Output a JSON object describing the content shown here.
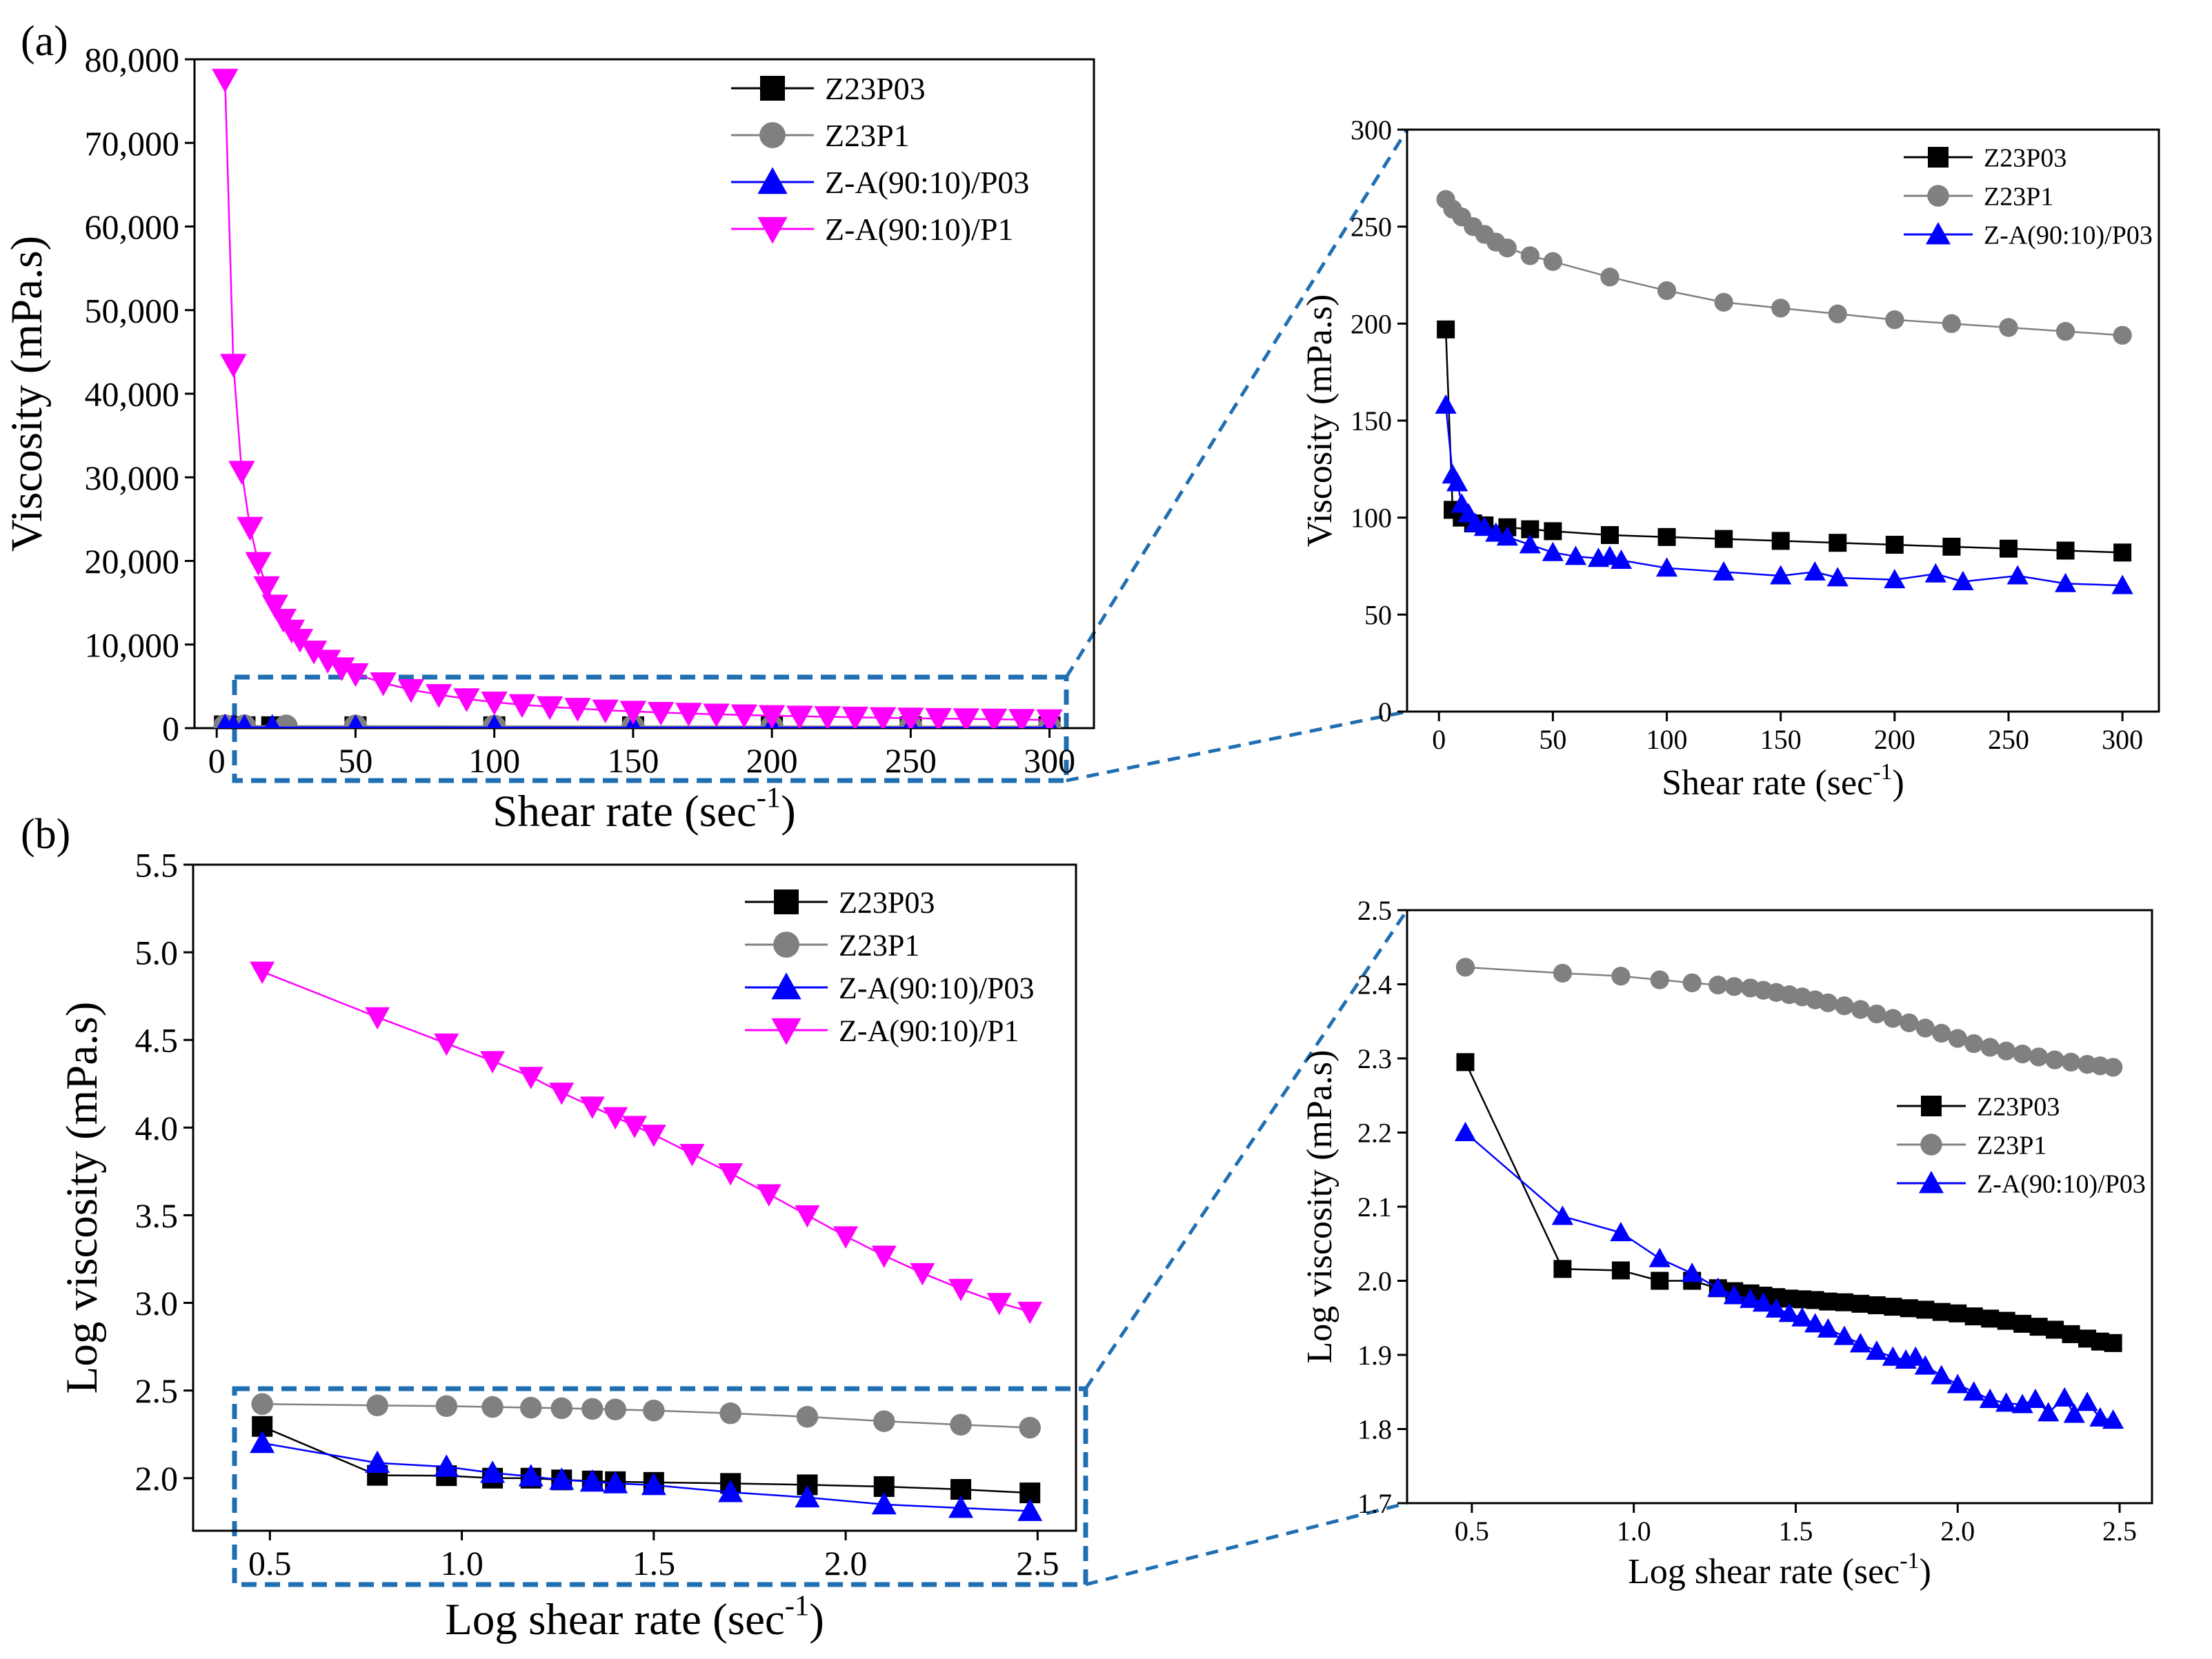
{
  "figure": {
    "panel_a_label": "(a)",
    "panel_b_label": "(b)"
  },
  "colors": {
    "Z23P03": "#000000",
    "Z23P1": "#808080",
    "Z-A(90:10)/P03": "#0000ff",
    "Z-A(90:10)/P1": "#ff00ff",
    "zoom": "#1f6fb2"
  },
  "chart_data": [
    {
      "id": "a-main",
      "type": "line",
      "title": "",
      "xlabel": "Shear rate (sec",
      "xlabel_sup": "-1",
      "xlabel_close": ")",
      "ylabel": "Viscosity (mPa.s)",
      "xlim": [
        -8,
        316
      ],
      "ylim": [
        0,
        80000
      ],
      "xticks": [
        0,
        50,
        100,
        150,
        200,
        250,
        300
      ],
      "xtick_labels": [
        "0",
        "50",
        "100",
        "150",
        "200",
        "250",
        "300"
      ],
      "yticks": [
        0,
        10000,
        20000,
        30000,
        40000,
        50000,
        60000,
        70000,
        80000
      ],
      "ytick_labels": [
        "0",
        "10,000",
        "20,000",
        "30,000",
        "40,000",
        "50,000",
        "60,000",
        "70,000",
        "80,000"
      ],
      "legend": [
        "Z23P03",
        "Z23P1",
        "Z-A(90:10)/P03",
        "Z-A(90:10)/P1"
      ],
      "legend_position": "top-right",
      "series": [
        {
          "name": "Z23P03",
          "marker": "square",
          "x": [
            3,
            6,
            10,
            20,
            50,
            100,
            150,
            200,
            250,
            300
          ],
          "y": [
            197,
            104,
            100,
            97,
            92,
            90,
            88,
            86,
            84,
            82
          ]
        },
        {
          "name": "Z23P1",
          "marker": "circle",
          "x": [
            3,
            10,
            25,
            50,
            100,
            150,
            200,
            250,
            300
          ],
          "y": [
            264,
            252,
            240,
            232,
            217,
            208,
            202,
            198,
            194
          ]
        },
        {
          "name": "Z-A(90:10)/P03",
          "marker": "triangle-up",
          "x": [
            3,
            6,
            10,
            20,
            50,
            100,
            150,
            200,
            250,
            300
          ],
          "y": [
            158,
            122,
            107,
            95,
            82,
            74,
            70,
            68,
            67,
            65
          ]
        },
        {
          "name": "Z-A(90:10)/P1",
          "marker": "triangle-down",
          "x": [
            3,
            6,
            9,
            12,
            15,
            18,
            21,
            24,
            27,
            30,
            35,
            40,
            45,
            50,
            60,
            70,
            80,
            90,
            100,
            110,
            120,
            130,
            140,
            150,
            160,
            170,
            180,
            190,
            200,
            210,
            220,
            230,
            240,
            250,
            260,
            270,
            280,
            290,
            300
          ],
          "y": [
            77600,
            43500,
            30700,
            24000,
            19800,
            16900,
            14700,
            13000,
            11700,
            10600,
            9200,
            8100,
            7200,
            6500,
            5400,
            4600,
            4000,
            3500,
            3100,
            2800,
            2550,
            2350,
            2150,
            2000,
            1870,
            1760,
            1660,
            1570,
            1490,
            1420,
            1360,
            1300,
            1240,
            1190,
            1140,
            1100,
            1060,
            1020,
            980
          ]
        }
      ]
    },
    {
      "id": "a-zoom",
      "type": "line",
      "title": "",
      "xlabel": "Shear rate (sec",
      "xlabel_sup": "-1",
      "xlabel_close": ")",
      "ylabel": "Viscosity (mPa.s)",
      "xlim": [
        -14,
        316
      ],
      "ylim": [
        0,
        300
      ],
      "xticks": [
        0,
        50,
        100,
        150,
        200,
        250,
        300
      ],
      "xtick_labels": [
        "0",
        "50",
        "100",
        "150",
        "200",
        "250",
        "300"
      ],
      "yticks": [
        0,
        50,
        100,
        150,
        200,
        250,
        300
      ],
      "ytick_labels": [
        "0",
        "50",
        "100",
        "150",
        "200",
        "250",
        "300"
      ],
      "legend": [
        "Z23P03",
        "Z23P1",
        "Z-A(90:10)/P03"
      ],
      "legend_position": "top-right",
      "series": [
        {
          "name": "Z23P03",
          "marker": "square",
          "x": [
            3,
            6,
            10,
            15,
            20,
            30,
            40,
            50,
            75,
            100,
            125,
            150,
            175,
            200,
            225,
            250,
            275,
            300
          ],
          "y": [
            197,
            104,
            100,
            97,
            96,
            95,
            94,
            93,
            91,
            90,
            89,
            88,
            87,
            86,
            85,
            84,
            83,
            82
          ]
        },
        {
          "name": "Z23P1",
          "marker": "circle",
          "x": [
            3,
            6,
            10,
            15,
            20,
            25,
            30,
            40,
            50,
            75,
            100,
            125,
            150,
            175,
            200,
            225,
            250,
            275,
            300
          ],
          "y": [
            264,
            259,
            255,
            250,
            246,
            242,
            239,
            235,
            232,
            224,
            217,
            211,
            208,
            205,
            202,
            200,
            198,
            196,
            194
          ]
        },
        {
          "name": "Z-A(90:10)/P03",
          "marker": "triangle-up",
          "x": [
            3,
            6,
            8,
            10,
            13,
            16,
            20,
            25,
            30,
            40,
            50,
            60,
            70,
            75,
            80,
            100,
            125,
            150,
            165,
            175,
            200,
            218,
            230,
            254,
            275,
            300
          ],
          "y": [
            158,
            122,
            118,
            107,
            102,
            97,
            95,
            92,
            90,
            86,
            82,
            80,
            79,
            80,
            78,
            74,
            72,
            70,
            72,
            69,
            68,
            71,
            67,
            70,
            66,
            65
          ]
        }
      ]
    },
    {
      "id": "b-main",
      "type": "line",
      "title": "",
      "xlabel": "Log shear rate (sec",
      "xlabel_sup": "-1",
      "xlabel_close": ")",
      "ylabel": "Log viscosity (mPa.s)",
      "xlim": [
        0.3,
        2.6
      ],
      "ylim": [
        1.7,
        5.5
      ],
      "xticks": [
        0.5,
        1.0,
        1.5,
        2.0,
        2.5
      ],
      "xtick_labels": [
        "0.5",
        "1.0",
        "1.5",
        "2.0",
        "2.5"
      ],
      "yticks": [
        2.0,
        2.5,
        3.0,
        3.5,
        4.0,
        4.5,
        5.0,
        5.5
      ],
      "ytick_labels": [
        "2.0",
        "2.5",
        "3.0",
        "3.5",
        "4.0",
        "4.5",
        "5.0",
        "5.5"
      ],
      "legend": [
        "Z23P03",
        "Z23P1",
        "Z-A(90:10)/P03",
        "Z-A(90:10)/P1"
      ],
      "legend_position": "top-right",
      "series": [
        {
          "name": "Z23P03",
          "marker": "square",
          "x": [
            0.48,
            0.78,
            0.96,
            1.08,
            1.18,
            1.26,
            1.34,
            1.4,
            1.5,
            1.7,
            1.9,
            2.1,
            2.3,
            2.48
          ],
          "y": [
            2.295,
            2.016,
            2.014,
            2.0,
            2.0,
            1.99,
            1.984,
            1.98,
            1.976,
            1.97,
            1.962,
            1.952,
            1.936,
            1.916
          ]
        },
        {
          "name": "Z23P1",
          "marker": "circle",
          "x": [
            0.48,
            0.78,
            0.96,
            1.08,
            1.18,
            1.26,
            1.34,
            1.4,
            1.5,
            1.7,
            1.9,
            2.1,
            2.3,
            2.48
          ],
          "y": [
            2.423,
            2.415,
            2.411,
            2.406,
            2.402,
            2.399,
            2.395,
            2.392,
            2.386,
            2.37,
            2.35,
            2.325,
            2.305,
            2.288
          ]
        },
        {
          "name": "Z-A(90:10)/P03",
          "marker": "triangle-up",
          "x": [
            0.48,
            0.78,
            0.96,
            1.08,
            1.18,
            1.26,
            1.34,
            1.4,
            1.5,
            1.7,
            1.9,
            2.1,
            2.3,
            2.48
          ],
          "y": [
            2.2,
            2.087,
            2.065,
            2.03,
            2.01,
            1.99,
            1.98,
            1.97,
            1.96,
            1.92,
            1.89,
            1.85,
            1.83,
            1.812
          ]
        },
        {
          "name": "Z-A(90:10)/P1",
          "marker": "triangle-down",
          "x": [
            0.48,
            0.78,
            0.96,
            1.08,
            1.18,
            1.26,
            1.34,
            1.4,
            1.45,
            1.5,
            1.6,
            1.7,
            1.8,
            1.9,
            2.0,
            2.1,
            2.2,
            2.3,
            2.4,
            2.48
          ],
          "y": [
            4.89,
            4.63,
            4.48,
            4.38,
            4.29,
            4.2,
            4.12,
            4.06,
            4.01,
            3.96,
            3.85,
            3.74,
            3.62,
            3.5,
            3.38,
            3.27,
            3.17,
            3.08,
            3.0,
            2.95
          ]
        }
      ]
    },
    {
      "id": "b-zoom",
      "type": "line",
      "title": "",
      "xlabel": "Log shear rate (sec",
      "xlabel_sup": "-1",
      "xlabel_close": ")",
      "ylabel": "Log viscosity (mPa.s)",
      "xlim": [
        0.3,
        2.6
      ],
      "ylim": [
        1.7,
        2.5
      ],
      "xticks": [
        0.5,
        1.0,
        1.5,
        2.0,
        2.5
      ],
      "xtick_labels": [
        "0.5",
        "1.0",
        "1.5",
        "2.0",
        "2.5"
      ],
      "yticks": [
        1.7,
        1.8,
        1.9,
        2.0,
        2.1,
        2.2,
        2.3,
        2.4,
        2.5
      ],
      "ytick_labels": [
        "1.7",
        "1.8",
        "1.9",
        "2.0",
        "2.1",
        "2.2",
        "2.3",
        "2.4",
        "2.5"
      ],
      "legend": [
        "Z23P03",
        "Z23P1",
        "Z-A(90:10)/P03"
      ],
      "legend_position": "center-right",
      "series": [
        {
          "name": "Z23P03",
          "marker": "square",
          "x": [
            0.48,
            0.78,
            0.96,
            1.08,
            1.18,
            1.26,
            1.31,
            1.36,
            1.4,
            1.44,
            1.48,
            1.52,
            1.56,
            1.6,
            1.65,
            1.7,
            1.75,
            1.8,
            1.85,
            1.9,
            1.95,
            2.0,
            2.05,
            2.1,
            2.15,
            2.2,
            2.25,
            2.3,
            2.35,
            2.4,
            2.44,
            2.48
          ],
          "y": [
            2.295,
            2.016,
            2.014,
            2.0,
            2.0,
            1.99,
            1.986,
            1.983,
            1.98,
            1.978,
            1.976,
            1.975,
            1.974,
            1.972,
            1.971,
            1.969,
            1.967,
            1.965,
            1.963,
            1.961,
            1.958,
            1.956,
            1.952,
            1.949,
            1.946,
            1.942,
            1.938,
            1.934,
            1.928,
            1.922,
            1.918,
            1.916
          ]
        },
        {
          "name": "Z23P1",
          "marker": "circle",
          "x": [
            0.48,
            0.78,
            0.96,
            1.08,
            1.18,
            1.26,
            1.31,
            1.36,
            1.4,
            1.44,
            1.48,
            1.52,
            1.56,
            1.6,
            1.65,
            1.7,
            1.75,
            1.8,
            1.85,
            1.9,
            1.95,
            2.0,
            2.05,
            2.1,
            2.15,
            2.2,
            2.25,
            2.3,
            2.35,
            2.4,
            2.44,
            2.48
          ],
          "y": [
            2.423,
            2.415,
            2.411,
            2.406,
            2.402,
            2.399,
            2.397,
            2.395,
            2.392,
            2.389,
            2.386,
            2.383,
            2.379,
            2.375,
            2.371,
            2.366,
            2.36,
            2.354,
            2.348,
            2.341,
            2.334,
            2.327,
            2.32,
            2.315,
            2.31,
            2.306,
            2.302,
            2.298,
            2.295,
            2.292,
            2.29,
            2.288
          ]
        },
        {
          "name": "Z-A(90:10)/P03",
          "marker": "triangle-up",
          "x": [
            0.48,
            0.78,
            0.96,
            1.08,
            1.18,
            1.26,
            1.31,
            1.36,
            1.4,
            1.44,
            1.48,
            1.52,
            1.56,
            1.6,
            1.65,
            1.7,
            1.75,
            1.8,
            1.84,
            1.87,
            1.9,
            1.95,
            2.0,
            2.05,
            2.1,
            2.15,
            2.2,
            2.24,
            2.28,
            2.33,
            2.36,
            2.4,
            2.44,
            2.48
          ],
          "y": [
            2.2,
            2.087,
            2.065,
            2.03,
            2.01,
            1.99,
            1.98,
            1.975,
            1.97,
            1.962,
            1.956,
            1.95,
            1.942,
            1.935,
            1.925,
            1.915,
            1.905,
            1.897,
            1.893,
            1.897,
            1.885,
            1.872,
            1.86,
            1.85,
            1.84,
            1.835,
            1.833,
            1.84,
            1.822,
            1.842,
            1.82,
            1.836,
            1.815,
            1.812
          ]
        }
      ]
    }
  ]
}
